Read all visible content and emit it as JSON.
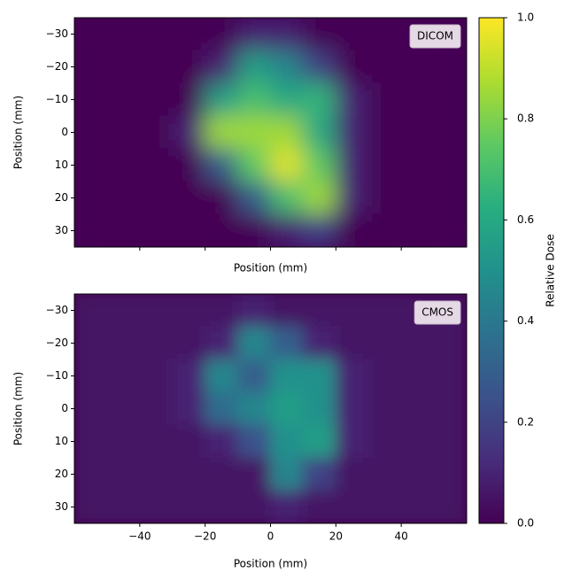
{
  "chart_data": [
    {
      "type": "heatmap",
      "label": "DICOM",
      "xlabel": "Position (mm)",
      "ylabel": "Position (mm)",
      "x": [
        -55,
        -45,
        -35,
        -25,
        -15,
        -5,
        5,
        15,
        25,
        35,
        45,
        55
      ],
      "y": [
        -30,
        -20,
        -10,
        0,
        10,
        20,
        30
      ],
      "z": [
        [
          0,
          0,
          0,
          0,
          0,
          0.1,
          0.1,
          0,
          0,
          0,
          0,
          0
        ],
        [
          0,
          0,
          0,
          0,
          0.1,
          0.55,
          0.45,
          0.2,
          0,
          0,
          0,
          0
        ],
        [
          0,
          0,
          0,
          0,
          0.55,
          0.7,
          0.6,
          0.65,
          0.1,
          0,
          0,
          0
        ],
        [
          0,
          0,
          0,
          0.1,
          0.85,
          0.85,
          0.85,
          0.6,
          0.1,
          0,
          0,
          0
        ],
        [
          0,
          0,
          0,
          0,
          0.3,
          0.75,
          0.95,
          0.75,
          0.1,
          0,
          0,
          0
        ],
        [
          0,
          0,
          0,
          0,
          0,
          0.3,
          0.7,
          0.85,
          0.1,
          0,
          0,
          0
        ],
        [
          0,
          0,
          0,
          0,
          0,
          0,
          0.1,
          0.2,
          0,
          0,
          0,
          0
        ]
      ],
      "xlim": [
        -60,
        60
      ],
      "ylim": [
        -35,
        35
      ],
      "xticks": [
        -40,
        -20,
        0,
        20,
        40
      ],
      "yticks": [
        {
          "value": -30,
          "label": "−30"
        },
        {
          "value": -20,
          "label": "−20"
        },
        {
          "value": -10,
          "label": "−10"
        },
        0,
        10,
        20,
        30
      ],
      "cmap": "viridis",
      "colorbar": {
        "label": "Relative Dose",
        "lim": [
          0,
          1
        ],
        "ticks": [
          {
            "value": 0,
            "label": "0.0"
          },
          {
            "value": 0.2,
            "label": "0.2"
          },
          {
            "value": 0.4,
            "label": "0.4"
          },
          {
            "value": 0.6,
            "label": "0.6"
          },
          {
            "value": 0.8,
            "label": "0.8"
          },
          {
            "value": 1,
            "label": "1.0"
          }
        ]
      }
    },
    {
      "type": "heatmap",
      "label": "CMOS",
      "xlabel": "Position (mm)",
      "ylabel": "Position (mm)",
      "x": [
        -55,
        -45,
        -35,
        -25,
        -15,
        -5,
        5,
        15,
        25,
        35,
        45,
        55
      ],
      "y": [
        -30,
        -20,
        -10,
        0,
        10,
        20,
        30
      ],
      "z": [
        [
          0.05,
          0.05,
          0.05,
          0.05,
          0.05,
          0.1,
          0.05,
          0.05,
          0.05,
          0.05,
          0.05,
          0.05
        ],
        [
          0.05,
          0.05,
          0.05,
          0.05,
          0.1,
          0.45,
          0.3,
          0.1,
          0.05,
          0.05,
          0.05,
          0.05
        ],
        [
          0.05,
          0.05,
          0.05,
          0.1,
          0.45,
          0.3,
          0.5,
          0.5,
          0.1,
          0.05,
          0.05,
          0.05
        ],
        [
          0.05,
          0.05,
          0.05,
          0.1,
          0.35,
          0.45,
          0.55,
          0.5,
          0.1,
          0.05,
          0.05,
          0.05
        ],
        [
          0.05,
          0.05,
          0.05,
          0.05,
          0.1,
          0.25,
          0.5,
          0.55,
          0.1,
          0.05,
          0.05,
          0.05
        ],
        [
          0.05,
          0.05,
          0.05,
          0.05,
          0.05,
          0.05,
          0.45,
          0.2,
          0.05,
          0.05,
          0.05,
          0.05
        ],
        [
          0.05,
          0.05,
          0.05,
          0.05,
          0.05,
          0.05,
          0.1,
          0.05,
          0.05,
          0.05,
          0.05,
          0.05
        ]
      ],
      "xlim": [
        -60,
        60
      ],
      "ylim": [
        -35,
        35
      ],
      "xticks": [
        {
          "value": -40,
          "label": "−40"
        },
        {
          "value": -20,
          "label": "−20"
        },
        0,
        20,
        40
      ],
      "yticks": [
        {
          "value": -30,
          "label": "−30"
        },
        {
          "value": -20,
          "label": "−20"
        },
        {
          "value": -10,
          "label": "−10"
        },
        0,
        10,
        20,
        30
      ],
      "cmap": "viridis"
    }
  ]
}
